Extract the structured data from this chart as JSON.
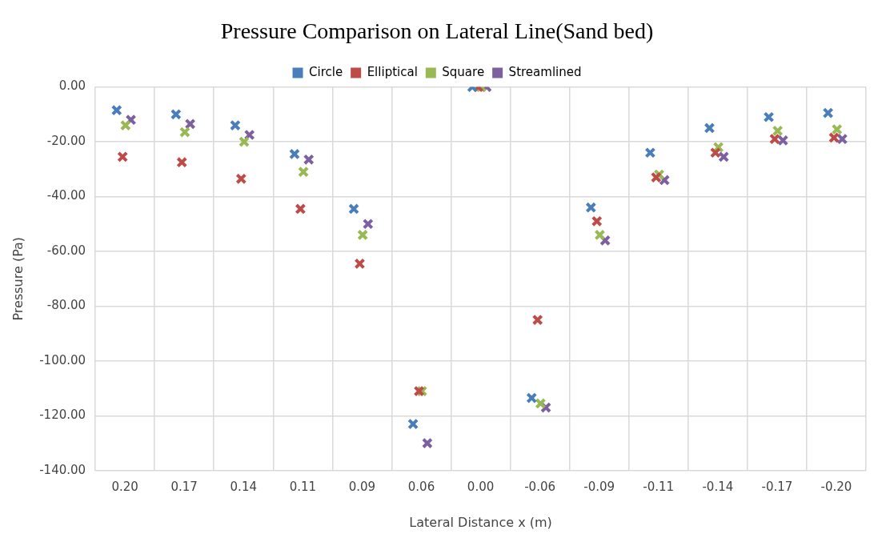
{
  "chart_data": {
    "type": "scatter",
    "title": "Pressure Comparison on Lateral Line(Sand bed)",
    "xlabel": "Lateral Distance x (m)",
    "ylabel": "Pressure (Pa)",
    "categories": [
      "0.20",
      "0.17",
      "0.14",
      "0.11",
      "0.09",
      "0.06",
      "0.00",
      "-0.06",
      "-0.09",
      "-0.11",
      "-0.14",
      "-0.17",
      "-0.20"
    ],
    "series": [
      {
        "name": "Circle",
        "color": "#4a7ebb",
        "values": [
          -8.5,
          -10,
          -14,
          -24.5,
          -44.5,
          -123,
          0,
          -113.5,
          -44,
          -24,
          -15,
          -11,
          -9.5
        ]
      },
      {
        "name": "Elliptical",
        "color": "#be4b48",
        "values": [
          -25.5,
          -27.5,
          -33.5,
          -44.5,
          -64.5,
          -111,
          0,
          -85,
          -49,
          -33,
          -24,
          -19,
          -18.5
        ]
      },
      {
        "name": "Square",
        "color": "#98b954",
        "values": [
          -14,
          -16.5,
          -20,
          -31,
          -54,
          -111,
          0,
          -115.5,
          -54,
          -32,
          -22,
          -16,
          -15.5
        ]
      },
      {
        "name": "Streamlined",
        "color": "#7d60a0",
        "values": [
          -12,
          -13.5,
          -17.5,
          -26.5,
          -50,
          -130,
          0,
          -117,
          -56,
          -34,
          -25.5,
          -19.5,
          -19
        ]
      }
    ],
    "ylim": [
      -140,
      0
    ],
    "yticks": [
      {
        "value": -140,
        "label": "-140.00"
      },
      {
        "value": -120,
        "label": "-120.00"
      },
      {
        "value": -100,
        "label": "-100.00"
      },
      {
        "value": -80,
        "label": "-80.00"
      },
      {
        "value": -60,
        "label": "-60.00"
      },
      {
        "value": -40,
        "label": "-40.00"
      },
      {
        "value": -20,
        "label": "-20.00"
      },
      {
        "value": 0,
        "label": "0.00"
      }
    ],
    "grid": true,
    "legend": "top",
    "marker": "cross"
  }
}
